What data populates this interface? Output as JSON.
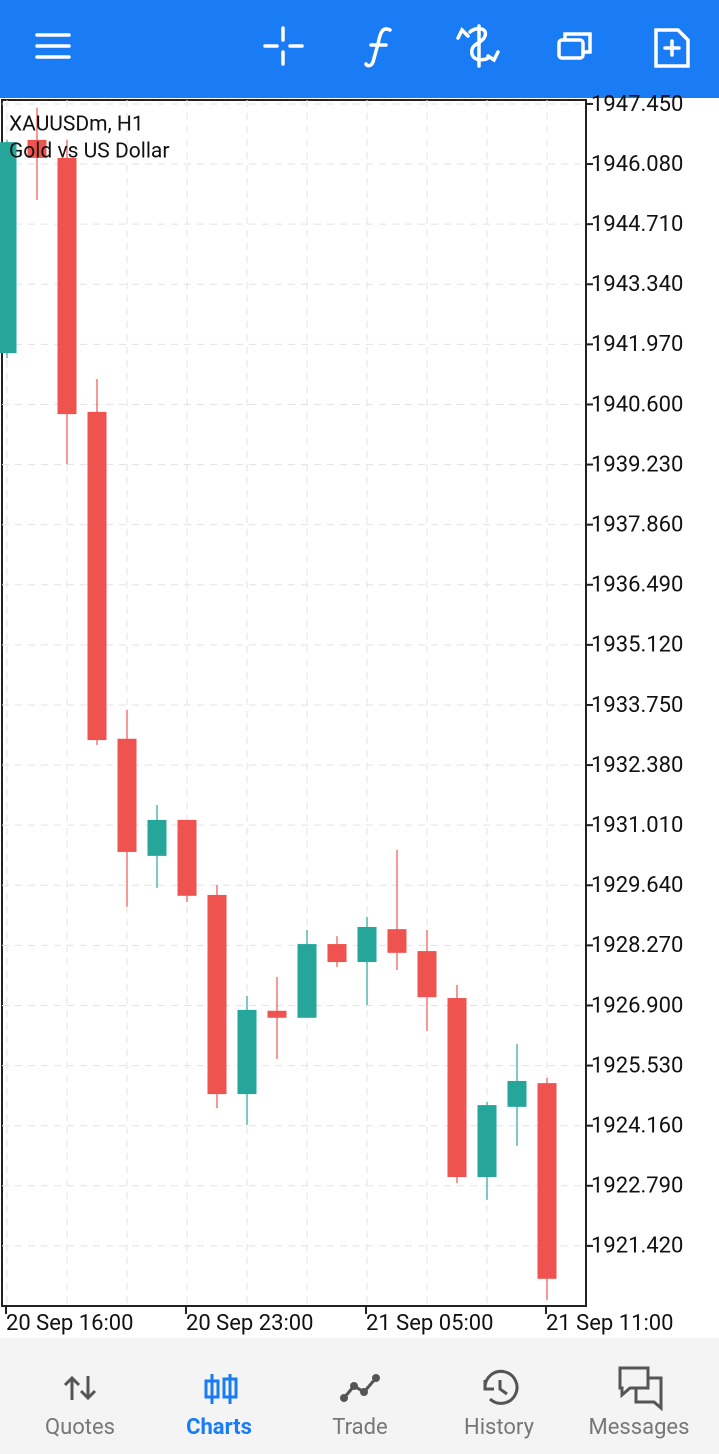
{
  "chart_data": {
    "type": "candlestick",
    "title": "XAUUSDm, H1",
    "subtitle": "Gold vs US Dollar",
    "categories": [
      "20 Sep 16:00",
      null,
      null,
      null,
      null,
      null,
      "20 Sep 23:00",
      null,
      null,
      null,
      null,
      null,
      "21 Sep 05:00",
      null,
      null,
      null,
      null,
      null,
      "21 Sep 11:00"
    ],
    "open": [
      1941.77,
      1946.63,
      1946.22,
      1940.43,
      1932.98,
      1930.31,
      1931.13,
      1929.42,
      1924.88,
      1926.78,
      1926.62,
      1928.3,
      1927.89,
      1928.64,
      1928.14,
      1927.07,
      1922.99,
      1924.59,
      1925.13
    ],
    "high": [
      1946.63,
      1947.36,
      1946.63,
      1941.18,
      1933.64,
      1931.47,
      1931.13,
      1929.65,
      1927.12,
      1927.55,
      1928.62,
      1928.48,
      1928.92,
      1930.45,
      1928.62,
      1927.37,
      1924.7,
      1926.02,
      1925.25
    ],
    "low": [
      1941.66,
      1945.26,
      1939.24,
      1932.84,
      1929.15,
      1929.58,
      1929.26,
      1924.56,
      1924.18,
      1925.68,
      1926.62,
      1927.78,
      1926.91,
      1927.71,
      1926.32,
      1922.85,
      1922.47,
      1923.7,
      1920.19
    ],
    "close": [
      1946.58,
      1946.22,
      1940.38,
      1932.95,
      1930.4,
      1931.13,
      1929.4,
      1924.88,
      1926.8,
      1926.62,
      1928.3,
      1927.89,
      1928.69,
      1928.1,
      1927.09,
      1922.99,
      1924.63,
      1925.18,
      1920.67
    ],
    "up_color": "#26a69a",
    "down_color": "#ef5350",
    "ylim": [
      1920.05,
      1947.54
    ],
    "yticks": [
      {
        "value": 1921.42,
        "label": "1921.420"
      },
      {
        "value": 1922.79,
        "label": "1922.790"
      },
      {
        "value": 1924.16,
        "label": "1924.160"
      },
      {
        "value": 1925.53,
        "label": "1925.530"
      },
      {
        "value": 1926.9,
        "label": "1926.900"
      },
      {
        "value": 1928.27,
        "label": "1928.270"
      },
      {
        "value": 1929.64,
        "label": "1929.640"
      },
      {
        "value": 1931.01,
        "label": "1931.010"
      },
      {
        "value": 1932.38,
        "label": "1932.380"
      },
      {
        "value": 1933.75,
        "label": "1933.750"
      },
      {
        "value": 1935.12,
        "label": "1935.120"
      },
      {
        "value": 1936.49,
        "label": "1936.490"
      },
      {
        "value": 1937.86,
        "label": "1937.860"
      },
      {
        "value": 1939.23,
        "label": "1939.230"
      },
      {
        "value": 1940.6,
        "label": "1940.600"
      },
      {
        "value": 1941.97,
        "label": "1941.970"
      },
      {
        "value": 1943.34,
        "label": "1943.340"
      },
      {
        "value": 1944.71,
        "label": "1944.710"
      },
      {
        "value": 1946.08,
        "label": "1946.080"
      },
      {
        "value": 1947.45,
        "label": "1947.450"
      }
    ],
    "grid": true
  },
  "nav": {
    "tabs": [
      "Quotes",
      "Charts",
      "Trade",
      "History",
      "Messages"
    ],
    "active": 1
  }
}
